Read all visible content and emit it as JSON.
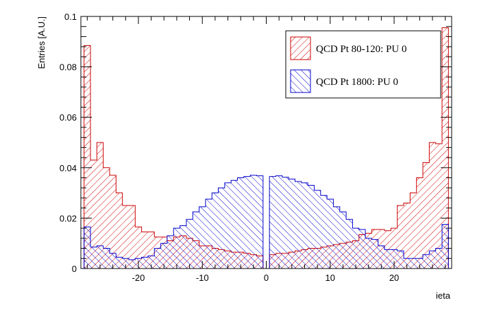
{
  "chart_data": {
    "type": "histogram",
    "xlabel": "ieta",
    "ylabel": "Entries [A.U.]",
    "xlim": [
      -29,
      29
    ],
    "ylim": [
      0,
      0.1
    ],
    "x_ticks": [
      -20,
      -10,
      0,
      10,
      20
    ],
    "x_tick_labels": [
      "-20",
      "-10",
      "0",
      "10",
      "20"
    ],
    "y_ticks": [
      0,
      0.02,
      0.04,
      0.06,
      0.08,
      0.1
    ],
    "y_tick_labels": [
      "0",
      "0.02",
      "0.04",
      "0.06",
      "0.08",
      "0.1"
    ],
    "legend_position": "top-right",
    "bins": [
      -28,
      -27,
      -26,
      -25,
      -24,
      -23,
      -22,
      -21,
      -20,
      -19,
      -18,
      -17,
      -16,
      -15,
      -14,
      -13,
      -12,
      -11,
      -10,
      -9,
      -8,
      -7,
      -6,
      -5,
      -4,
      -3,
      -2,
      -1,
      1,
      2,
      3,
      4,
      5,
      6,
      7,
      8,
      9,
      10,
      11,
      12,
      13,
      14,
      15,
      16,
      17,
      18,
      19,
      20,
      21,
      22,
      23,
      24,
      25,
      26,
      27,
      28
    ],
    "series": [
      {
        "name": "QCD Pt 80-120: PU 0",
        "color": "#cc0000",
        "hatch": "diagonal-down",
        "values": [
          0.0885,
          0.043,
          0.05,
          0.04,
          0.037,
          0.03,
          0.025,
          0.025,
          0.0165,
          0.0145,
          0.0145,
          0.0125,
          0.0125,
          0.011,
          0.0125,
          0.013,
          0.012,
          0.011,
          0.009,
          0.009,
          0.008,
          0.0075,
          0.007,
          0.0065,
          0.0065,
          0.006,
          0.0055,
          0.005,
          0.0055,
          0.006,
          0.006,
          0.0065,
          0.007,
          0.0075,
          0.008,
          0.008,
          0.0085,
          0.009,
          0.0095,
          0.01,
          0.0105,
          0.011,
          0.0135,
          0.014,
          0.0155,
          0.0155,
          0.015,
          0.016,
          0.025,
          0.026,
          0.03,
          0.036,
          0.042,
          0.05,
          0.0495,
          0.0955
        ]
      },
      {
        "name": "QCD Pt 1800: PU 0",
        "color": "#0000cc",
        "hatch": "diagonal-up",
        "values": [
          0.0165,
          0.0085,
          0.009,
          0.008,
          0.006,
          0.0045,
          0.004,
          0.0035,
          0.004,
          0.0045,
          0.005,
          0.008,
          0.01,
          0.013,
          0.016,
          0.017,
          0.0195,
          0.0225,
          0.0245,
          0.0275,
          0.03,
          0.032,
          0.034,
          0.035,
          0.036,
          0.0365,
          0.037,
          0.0368,
          0.0365,
          0.0368,
          0.0362,
          0.0355,
          0.0345,
          0.034,
          0.033,
          0.031,
          0.029,
          0.0275,
          0.0245,
          0.0225,
          0.0195,
          0.016,
          0.0155,
          0.012,
          0.0115,
          0.009,
          0.0075,
          0.0075,
          0.007,
          0.004,
          0.004,
          0.004,
          0.0055,
          0.007,
          0.008,
          0.0175
        ]
      }
    ]
  }
}
